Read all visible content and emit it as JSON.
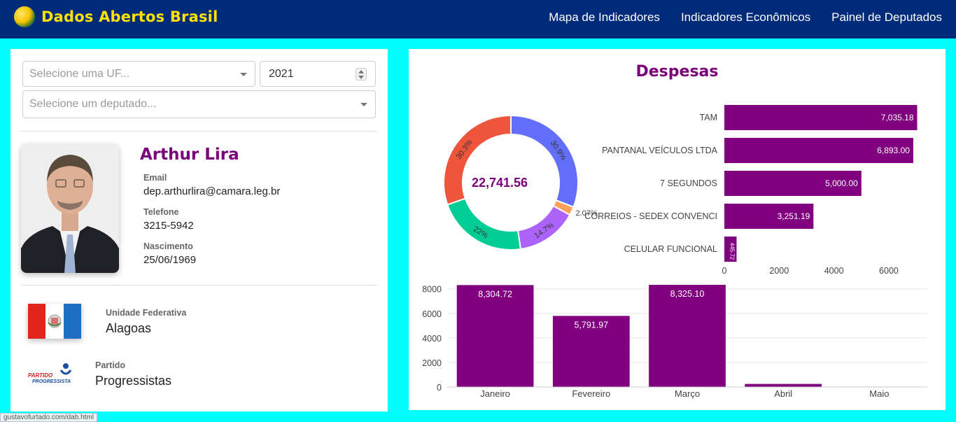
{
  "navbar": {
    "brand": "Dados Abertos Brasil",
    "links": [
      "Mapa de Indicadores",
      "Indicadores Econômicos",
      "Painel de Deputados"
    ]
  },
  "filters": {
    "uf_placeholder": "Selecione uma UF...",
    "year_value": "2021",
    "deputy_placeholder": "Selecione um deputado..."
  },
  "deputy": {
    "name": "Arthur Lira",
    "email_label": "Email",
    "email": "dep.arthurlira@camara.leg.br",
    "phone_label": "Telefone",
    "phone": "3215-5942",
    "birth_label": "Nascimento",
    "birth": "25/06/1969"
  },
  "state": {
    "label": "Unidade Federativa",
    "value": "Alagoas"
  },
  "party": {
    "label": "Partido",
    "value": "Progressistas",
    "logo_text": [
      "PARTIDO",
      "PROGRESSISTA"
    ]
  },
  "status_bar": "gustavofurtado.com/dab.html",
  "colors": {
    "accent": "#7a007a",
    "navbar": "#002a7a",
    "brand": "#ffe200",
    "page_bg": "#00ffff"
  },
  "chart_data": [
    {
      "type": "pie",
      "title": "Despesas",
      "center_label": "22,741.56",
      "slices": [
        {
          "label": "30.9%",
          "value": 30.9,
          "color": "#636efa"
        },
        {
          "label": "2.07%",
          "value": 2.07,
          "color": "#ffa15a"
        },
        {
          "label": "14.7%",
          "value": 14.7,
          "color": "#ab63fa"
        },
        {
          "label": "22%",
          "value": 22.0,
          "color": "#00cc96"
        },
        {
          "label": "30.3%",
          "value": 30.3,
          "color": "#ef553b"
        }
      ]
    },
    {
      "type": "bar",
      "orientation": "horizontal",
      "categories": [
        "TAM",
        "PANTANAL VEÍCULOS LTDA",
        "7 SEGUNDOS",
        "CORREIOS - SEDEX CONVENCI",
        "CELULAR FUNCIONAL"
      ],
      "values": [
        7035.18,
        6893.0,
        5000.0,
        3251.19,
        445.72
      ],
      "labels": [
        "7,035.18",
        "6,893.00",
        "5,000.00",
        "3,251.19",
        "445.72"
      ],
      "xticks": [
        "0",
        "2000",
        "4000",
        "6000"
      ],
      "xlim": [
        0,
        7150
      ],
      "color": "#800080"
    },
    {
      "type": "bar",
      "orientation": "vertical",
      "categories": [
        "Janeiro",
        "Fevereiro",
        "Março",
        "Abril",
        "Maio"
      ],
      "values": [
        8304.72,
        5791.97,
        8325.1,
        250,
        30
      ],
      "labels": [
        "8,304.72",
        "5,791.97",
        "8,325.10",
        "",
        ""
      ],
      "yticks": [
        "0",
        "2000",
        "4000",
        "6000",
        "8000"
      ],
      "ylim": [
        0,
        8325.1
      ],
      "color": "#800080"
    }
  ]
}
